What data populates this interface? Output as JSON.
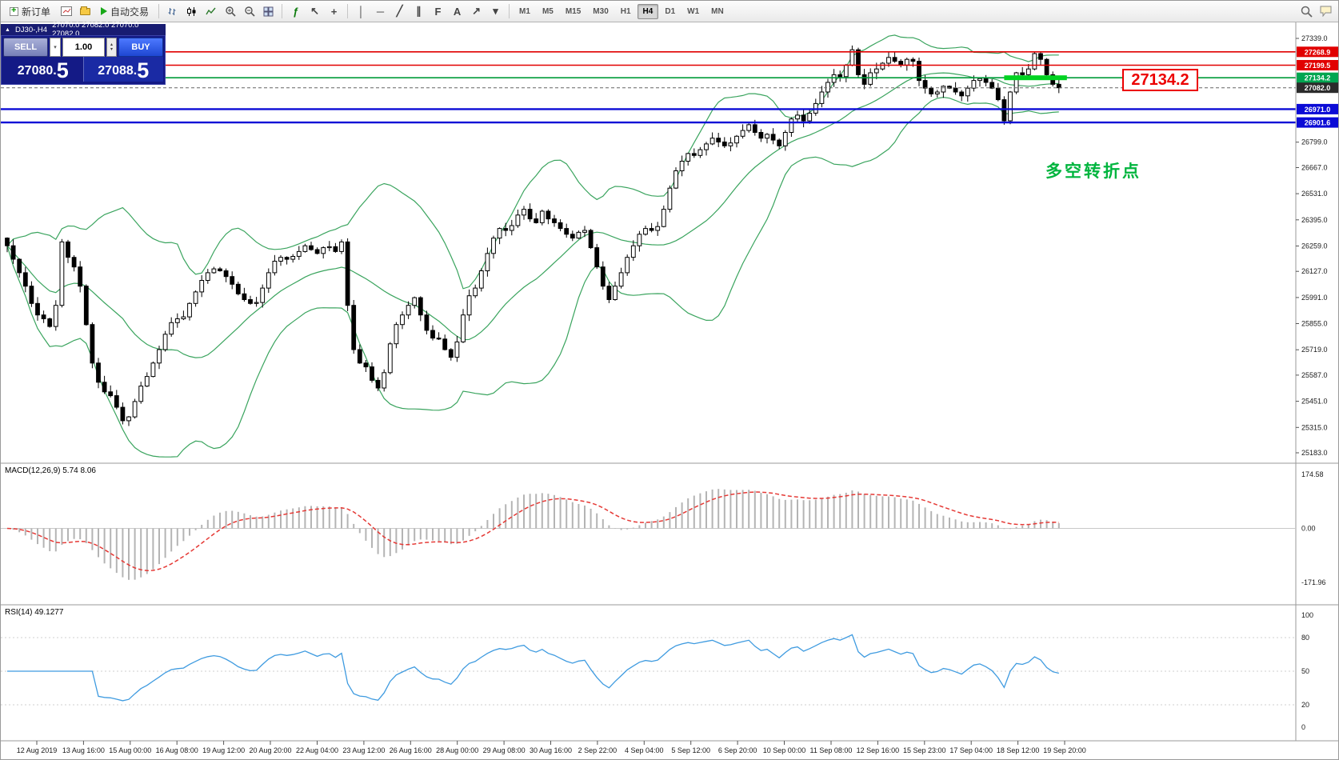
{
  "toolbar": {
    "new_order_label": "新订单",
    "auto_trading_label": "自动交易",
    "timeframes": [
      "M1",
      "M5",
      "M15",
      "M30",
      "H1",
      "H4",
      "D1",
      "W1",
      "MN"
    ],
    "active_timeframe": "H4",
    "icon_glyphs": {
      "indicators": "ƒ",
      "cursor": "↖",
      "crosshair": "+",
      "vline": "│",
      "hline": "─",
      "trendline": "╱",
      "channel": "∥",
      "fibonacci": "F",
      "text_tool": "A",
      "arrows": "↗",
      "dropdown": "▾"
    }
  },
  "chart_header": {
    "symbol": "DJ30-,H4",
    "ohlc": "27070.0 27082.0 27070.0 27082.0"
  },
  "trade_panel": {
    "sell_label": "SELL",
    "buy_label": "BUY",
    "volume": "1.00",
    "sell_price_main": "27080.",
    "sell_price_big": "5",
    "buy_price_main": "27088.",
    "buy_price_big": "5"
  },
  "annotations": {
    "price_callout": "27134.2",
    "turning_point": "多空转折点"
  },
  "indicators": {
    "macd_label": "MACD(12,26,9) 5.74 8.06",
    "macd_scale": [
      "174.58",
      "0.00",
      "-171.96"
    ],
    "rsi_label": "RSI(14) 49.1277",
    "rsi_scale": [
      "100",
      "80",
      "50",
      "20",
      "0"
    ]
  },
  "price_scale": {
    "gridline_labels": [
      "27339.0",
      "26799.0",
      "26667.0",
      "26531.0",
      "26395.0",
      "26259.0",
      "26127.0",
      "25991.0",
      "25855.0",
      "25719.0",
      "25587.0",
      "25451.0",
      "25315.0",
      "25183.0"
    ],
    "badges": [
      {
        "value": "27268.9",
        "price": 27268.9,
        "color": "#e10000"
      },
      {
        "value": "27199.5",
        "price": 27199.5,
        "color": "#e10000"
      },
      {
        "value": "27134.2",
        "price": 27134.2,
        "color": "#00a651"
      },
      {
        "value": "27082.0",
        "price": 27082.0,
        "color": "#2b2b2b"
      },
      {
        "value": "26971.0",
        "price": 26971.0,
        "color": "#0b0bd6"
      },
      {
        "value": "26901.6",
        "price": 26901.6,
        "color": "#0b0bd6"
      }
    ]
  },
  "time_axis": [
    "12 Aug 2019",
    "13 Aug 16:00",
    "15 Aug 00:00",
    "16 Aug 08:00",
    "19 Aug 12:00",
    "20 Aug 20:00",
    "22 Aug 04:00",
    "23 Aug 12:00",
    "26 Aug 16:00",
    "28 Aug 00:00",
    "29 Aug 08:00",
    "30 Aug 16:00",
    "2 Sep 22:00",
    "4 Sep 04:00",
    "5 Sep 12:00",
    "6 Sep 20:00",
    "10 Sep 00:00",
    "11 Sep 08:00",
    "12 Sep 16:00",
    "15 Sep 23:00",
    "17 Sep 04:00",
    "18 Sep 12:00",
    "19 Sep 20:00"
  ],
  "chart_data": {
    "type": "candlestick",
    "symbol": "DJ30-",
    "timeframe": "H4",
    "ylim": [
      25183.0,
      27339.0
    ],
    "first_open": 26300,
    "closes": [
      26260,
      26190,
      26120,
      26050,
      25960,
      25900,
      25880,
      25840,
      25950,
      26280,
      26200,
      26150,
      26050,
      25850,
      25650,
      25550,
      25500,
      25480,
      25420,
      25350,
      25370,
      25450,
      25530,
      25580,
      25650,
      25720,
      25800,
      25860,
      25880,
      25890,
      25960,
      26020,
      26080,
      26120,
      26140,
      26130,
      26100,
      26060,
      26010,
      25980,
      25960,
      25965,
      26040,
      26120,
      26180,
      26200,
      26190,
      26205,
      26230,
      26260,
      26240,
      26220,
      26250,
      26255,
      26230,
      26280,
      25950,
      25720,
      25650,
      25630,
      25560,
      25520,
      25600,
      25750,
      25850,
      25900,
      25950,
      25990,
      25900,
      25820,
      25780,
      25775,
      25720,
      25680,
      25760,
      25900,
      26000,
      26040,
      26130,
      26220,
      26300,
      26350,
      26340,
      26365,
      26420,
      26450,
      26400,
      26380,
      26440,
      26400,
      26380,
      26350,
      26320,
      26300,
      26330,
      26340,
      26250,
      26150,
      26050,
      25980,
      26050,
      26120,
      26200,
      26260,
      26320,
      26350,
      26340,
      26360,
      26450,
      26560,
      26650,
      26700,
      26740,
      26730,
      26760,
      26790,
      26820,
      26800,
      26780,
      26795,
      26830,
      26860,
      26890,
      26850,
      26820,
      26840,
      26810,
      26780,
      26850,
      26920,
      26940,
      26910,
      26950,
      27000,
      27060,
      27110,
      27150,
      27140,
      27200,
      27280,
      27150,
      27100,
      27160,
      27180,
      27210,
      27240,
      27220,
      27200,
      27230,
      27220,
      27120,
      27080,
      27050,
      27060,
      27090,
      27080,
      27060,
      27040,
      27080,
      27120,
      27130,
      27110,
      27080,
      27020,
      26910,
      27060,
      27160,
      27150,
      27180,
      27260,
      27230,
      27150,
      27100,
      27082
    ],
    "hlines": [
      {
        "price": 27268.9,
        "color": "#e10000",
        "width": 1.6
      },
      {
        "price": 27199.5,
        "color": "#e10000",
        "width": 1.6
      },
      {
        "price": 27134.2,
        "color": "#009b3a",
        "width": 1.6
      },
      {
        "price": 26971.0,
        "color": "#0b0bd6",
        "width": 2.4
      },
      {
        "price": 26901.6,
        "color": "#0b0bd6",
        "width": 2.4
      }
    ],
    "current_price": {
      "price": 27082.0,
      "color": "#666666"
    },
    "green_segment": {
      "price": 27134.2,
      "start_index": 164,
      "color": "#00d321",
      "width": 6
    },
    "bollinger": {
      "period": 20,
      "deviation": 2
    },
    "macd": {
      "fast": 12,
      "slow": 26,
      "signal": 9
    },
    "rsi": {
      "period": 14
    },
    "colors": {
      "bollinger": "#3aa45e",
      "macd_hist": "#b4b4b4",
      "macd_signal": "#e53935",
      "rsi": "#3f9be0",
      "bull": "#ffffff",
      "bear": "#000000"
    }
  }
}
